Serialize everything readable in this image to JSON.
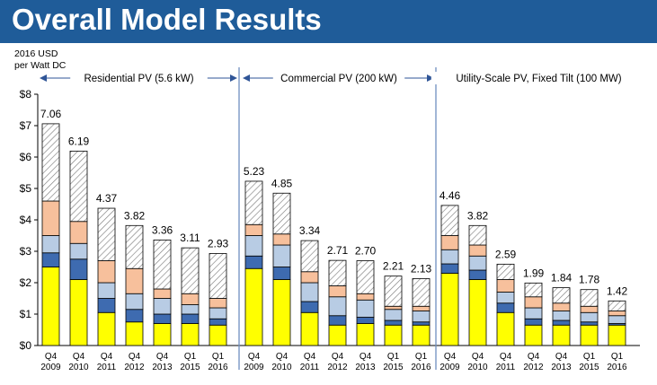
{
  "page": {
    "title": "Overall Model Results"
  },
  "colors": {
    "title_bar": "#1f5c99",
    "hatch": "#7f7f7f",
    "peach": "#f7c09c",
    "lightblue": "#b8cce4",
    "blue": "#3e6bb0",
    "yellow": "#ffff00",
    "divider": "#6f8fbf"
  },
  "chart_data": {
    "type": "bar",
    "stacked": true,
    "ylabel_lines": [
      "2016 USD",
      "per Watt DC"
    ],
    "ylim": [
      0,
      8
    ],
    "yticks": [
      0,
      1,
      2,
      3,
      4,
      5,
      6,
      7,
      8
    ],
    "ytick_labels": [
      "$0",
      "$1",
      "$2",
      "$3",
      "$4",
      "$5",
      "$6",
      "$7",
      "$8"
    ],
    "grid": false,
    "groups": [
      {
        "label": "Residential PV (5.6 kW)",
        "categories": [
          [
            "Q4",
            "2009"
          ],
          [
            "Q4",
            "2010"
          ],
          [
            "Q4",
            "2011"
          ],
          [
            "Q4",
            "2012"
          ],
          [
            "Q4",
            "2013"
          ],
          [
            "Q1",
            "2015"
          ],
          [
            "Q1",
            "2016"
          ]
        ],
        "totals": [
          7.06,
          6.19,
          4.37,
          3.82,
          3.36,
          3.11,
          2.93
        ],
        "total_labels": [
          "7.06",
          "6.19",
          "4.37",
          "3.82",
          "3.36",
          "3.11",
          "2.93"
        ],
        "segments": {
          "yellow": [
            2.5,
            2.1,
            1.05,
            0.75,
            0.7,
            0.7,
            0.65
          ],
          "blue": [
            0.45,
            0.65,
            0.45,
            0.4,
            0.3,
            0.3,
            0.2
          ],
          "lightblue": [
            0.55,
            0.5,
            0.5,
            0.5,
            0.5,
            0.3,
            0.35
          ],
          "peach": [
            1.1,
            0.7,
            0.7,
            0.8,
            0.3,
            0.35,
            0.3
          ],
          "hatch": [
            2.46,
            2.24,
            1.67,
            1.37,
            1.56,
            1.46,
            1.43
          ]
        }
      },
      {
        "label": "Commercial PV (200 kW)",
        "categories": [
          [
            "Q4",
            "2009"
          ],
          [
            "Q4",
            "2010"
          ],
          [
            "Q4",
            "2011"
          ],
          [
            "Q4",
            "2012"
          ],
          [
            "Q4",
            "2013"
          ],
          [
            "Q1",
            "2015"
          ],
          [
            "Q1",
            "2016"
          ]
        ],
        "totals": [
          5.23,
          4.85,
          3.34,
          2.71,
          2.7,
          2.21,
          2.13
        ],
        "total_labels": [
          "5.23",
          "4.85",
          "3.34",
          "2.71",
          "2.70",
          "2.21",
          "2.13"
        ],
        "segments": {
          "yellow": [
            2.45,
            2.1,
            1.05,
            0.65,
            0.7,
            0.65,
            0.65
          ],
          "blue": [
            0.4,
            0.4,
            0.35,
            0.3,
            0.2,
            0.15,
            0.1
          ],
          "lightblue": [
            0.65,
            0.7,
            0.6,
            0.6,
            0.55,
            0.35,
            0.35
          ],
          "peach": [
            0.35,
            0.35,
            0.35,
            0.35,
            0.2,
            0.1,
            0.15
          ],
          "hatch": [
            1.38,
            1.3,
            0.99,
            0.81,
            1.05,
            0.96,
            0.88
          ]
        }
      },
      {
        "label": "Utility-Scale PV, Fixed Tilt (100 MW)",
        "categories": [
          [
            "Q4",
            "2009"
          ],
          [
            "Q4",
            "2010"
          ],
          [
            "Q4",
            "2011"
          ],
          [
            "Q4",
            "2012"
          ],
          [
            "Q4",
            "2013"
          ],
          [
            "Q1",
            "2015"
          ],
          [
            "Q1",
            "2016"
          ]
        ],
        "totals": [
          4.46,
          3.82,
          2.59,
          1.99,
          1.84,
          1.78,
          1.42
        ],
        "total_labels": [
          "4.46",
          "3.82",
          "2.59",
          "1.99",
          "1.84",
          "1.78",
          "1.42"
        ],
        "segments": {
          "yellow": [
            2.3,
            2.1,
            1.05,
            0.65,
            0.65,
            0.65,
            0.65
          ],
          "blue": [
            0.3,
            0.3,
            0.3,
            0.2,
            0.15,
            0.1,
            0.05
          ],
          "lightblue": [
            0.45,
            0.45,
            0.35,
            0.35,
            0.3,
            0.3,
            0.25
          ],
          "peach": [
            0.45,
            0.35,
            0.4,
            0.35,
            0.25,
            0.2,
            0.15
          ],
          "hatch": [
            0.96,
            0.62,
            0.49,
            0.44,
            0.49,
            0.53,
            0.32
          ]
        }
      }
    ]
  }
}
